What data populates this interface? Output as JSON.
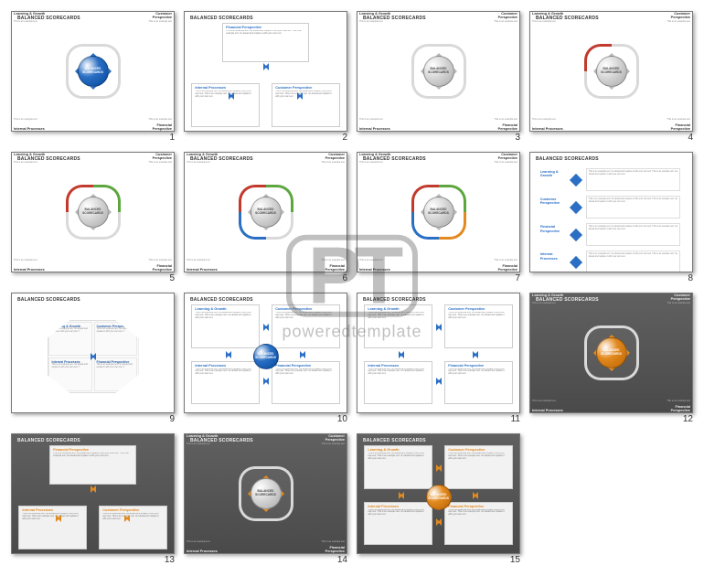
{
  "watermark": {
    "logo": "PT",
    "brand": "poweredtemplate"
  },
  "common": {
    "title": "BALANCED SCORECARDS",
    "center_label": "BALANCED SCORECARDS",
    "quad_labels": {
      "tl": "Learning & Growth",
      "tr": "Customer Perspective",
      "bl": "Internal Processes",
      "br": "Financial Perspective"
    },
    "example_text": "This is an example text",
    "lorem": "This is an example text. Go ahead and replace it with your own text. This is an example text. Go ahead and replace it with your own text."
  },
  "slides": [
    {
      "n": 1,
      "layout": "cross",
      "bg": "light",
      "sphere": "#2a6fc4",
      "sphere_txt": "#ffffff",
      "arrows": "#2a6fc4",
      "blades": [
        "#d9d9d9",
        "#d9d9d9",
        "#d9d9d9",
        "#d9d9d9"
      ]
    },
    {
      "n": 2,
      "layout": "three_frame",
      "bg": "light",
      "accent": "#2a6fc4",
      "top": "Financial Perspective",
      "bl_h": "Internal Processes",
      "br_h": "Customer Perspective"
    },
    {
      "n": 3,
      "layout": "cross",
      "bg": "light",
      "sphere": "grey",
      "arrows": "#b8b8b8",
      "blades": [
        "#d9d9d9",
        "#d9d9d9",
        "#d9d9d9",
        "#d9d9d9"
      ]
    },
    {
      "n": 4,
      "layout": "cross",
      "bg": "light",
      "sphere": "grey",
      "arrows": "#b8b8b8",
      "blades": [
        "#c23a2e",
        "#d9d9d9",
        "#d9d9d9",
        "#d9d9d9"
      ]
    },
    {
      "n": 5,
      "layout": "cross",
      "bg": "light",
      "sphere": "grey",
      "arrows": "#b8b8b8",
      "blades": [
        "#c23a2e",
        "#5da63f",
        "#d9d9d9",
        "#d9d9d9"
      ]
    },
    {
      "n": 6,
      "layout": "cross",
      "bg": "light",
      "sphere": "grey",
      "arrows": "#b8b8b8",
      "blades": [
        "#c23a2e",
        "#5da63f",
        "#2a6fc4",
        "#d9d9d9"
      ]
    },
    {
      "n": 7,
      "layout": "cross",
      "bg": "light",
      "sphere": "grey",
      "arrows": "#b8b8b8",
      "blades": [
        "#c23a2e",
        "#5da63f",
        "#2a6fc4",
        "#e28a1f"
      ]
    },
    {
      "n": 8,
      "layout": "list",
      "bg": "light",
      "accent": "#2a6fc4",
      "rows": [
        "Learning & Growth",
        "Customer Perspective",
        "Financial Perspective",
        "Internal Processes"
      ]
    },
    {
      "n": 9,
      "layout": "octagon",
      "bg": "light",
      "accent": "#2a6fc4"
    },
    {
      "n": 10,
      "layout": "four_frame_center",
      "bg": "light",
      "accent": "#2a6fc4",
      "sphere": "#2a6fc4"
    },
    {
      "n": 11,
      "layout": "four_frame",
      "bg": "light",
      "accent": "#2a6fc4"
    },
    {
      "n": 12,
      "layout": "cross",
      "bg": "dark",
      "sphere": "#e28a1f",
      "sphere_txt": "#ffffff",
      "arrows": "#e28a1f",
      "blades": [
        "#d9d9d9",
        "#d9d9d9",
        "#d9d9d9",
        "#d9d9d9"
      ]
    },
    {
      "n": 13,
      "layout": "three_frame",
      "bg": "dark",
      "accent": "#e28a1f",
      "top": "Financial Perspective",
      "bl_h": "Internal Processes",
      "br_h": "Customer Perspective"
    },
    {
      "n": 14,
      "layout": "cross",
      "bg": "dark",
      "sphere": "grey",
      "arrows": "#e28a1f",
      "blades": [
        "#d9d9d9",
        "#d9d9d9",
        "#d9d9d9",
        "#d9d9d9"
      ]
    },
    {
      "n": 15,
      "layout": "four_frame_center",
      "bg": "dark",
      "accent": "#e28a1f",
      "sphere": "#e28a1f"
    }
  ],
  "colors": {
    "light_bg": "#ffffff",
    "dark_bg": "#555555"
  }
}
